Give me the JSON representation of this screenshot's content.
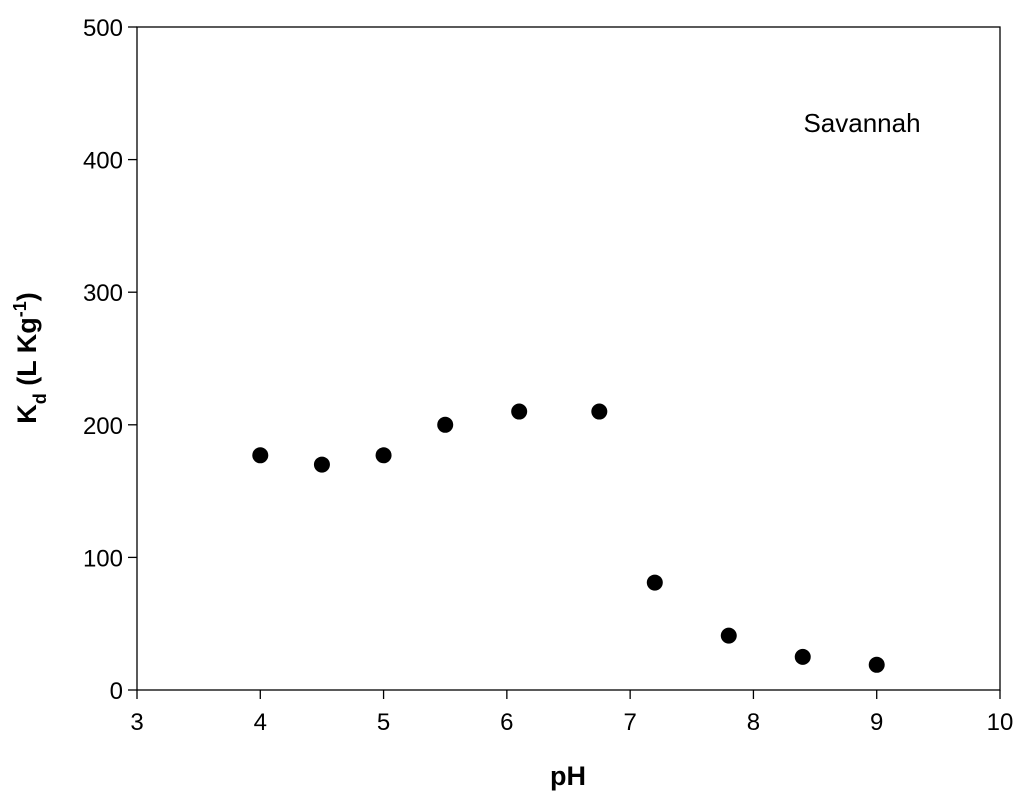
{
  "chart_data": {
    "type": "scatter",
    "xlabel": "pH",
    "ylabel": {
      "main": "K",
      "sub": "d",
      "rest": " (L Kg",
      "sup": "-1",
      "end": ")"
    },
    "annotation": "Savannah",
    "x": [
      4,
      4.5,
      5,
      5.5,
      6.1,
      6.75,
      7.2,
      7.8,
      8.4,
      9
    ],
    "values": [
      177,
      170,
      177,
      200,
      210,
      210,
      81,
      41,
      25,
      19
    ],
    "color": "#000000",
    "xlim": [
      3,
      10
    ],
    "xticks": [
      3,
      4,
      5,
      6,
      7,
      8,
      9,
      10
    ],
    "ylim": [
      0,
      500
    ],
    "yticks": [
      0,
      100,
      200,
      300,
      400,
      500
    ],
    "grid": false
  }
}
